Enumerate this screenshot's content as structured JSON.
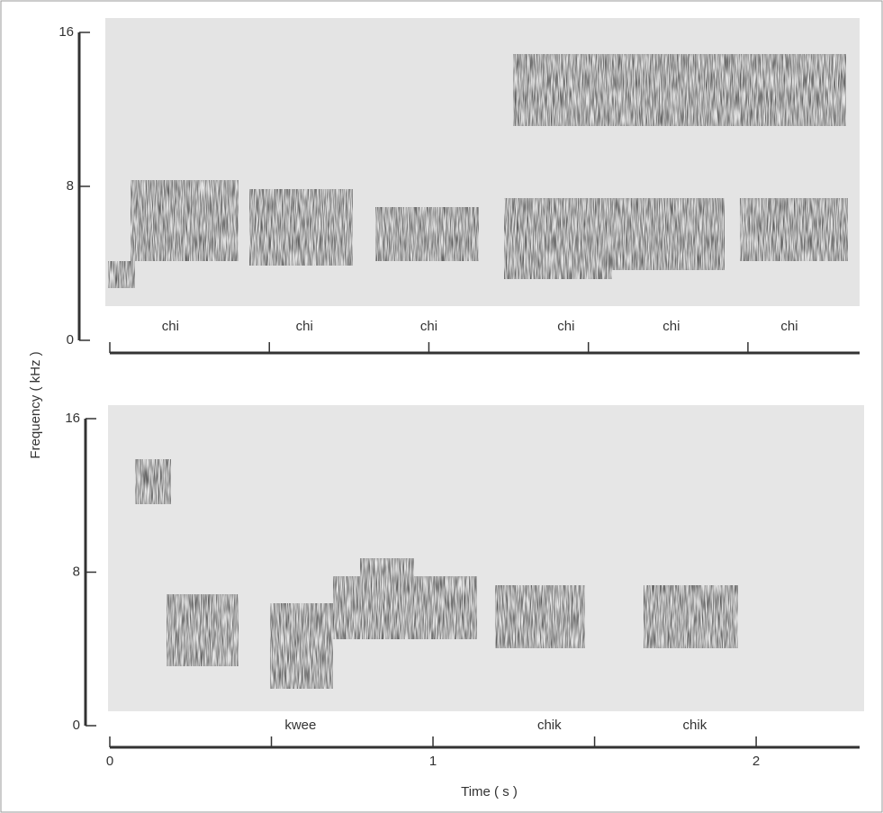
{
  "chart_data": [
    {
      "type": "spectrogram",
      "ylabel": "Frequency ( kHz )",
      "ylim": [
        0,
        16
      ],
      "yticks": [
        16,
        8,
        0
      ],
      "xlim": [
        0,
        2.35
      ],
      "minor_xticks": [
        0,
        0.5,
        1,
        1.5,
        2
      ],
      "annotations": [
        {
          "text": "chi",
          "x": 0.19
        },
        {
          "text": "chi",
          "x": 0.61
        },
        {
          "text": "chi",
          "x": 1.0
        },
        {
          "text": "chi",
          "x": 1.43
        },
        {
          "text": "chi",
          "x": 1.76
        },
        {
          "text": "chi",
          "x": 2.13
        }
      ]
    },
    {
      "type": "spectrogram",
      "xlabel": "Time ( s )",
      "ylim": [
        0,
        16
      ],
      "yticks": [
        16,
        8,
        0
      ],
      "xlim": [
        0,
        2.32
      ],
      "xticks": [
        0,
        1,
        2
      ],
      "minor_xticks": [
        0.5,
        1.5
      ],
      "annotations": [
        {
          "text": "kwee",
          "x": 0.59
        },
        {
          "text": "chik",
          "x": 1.36
        },
        {
          "text": "chik",
          "x": 1.81
        }
      ]
    }
  ]
}
